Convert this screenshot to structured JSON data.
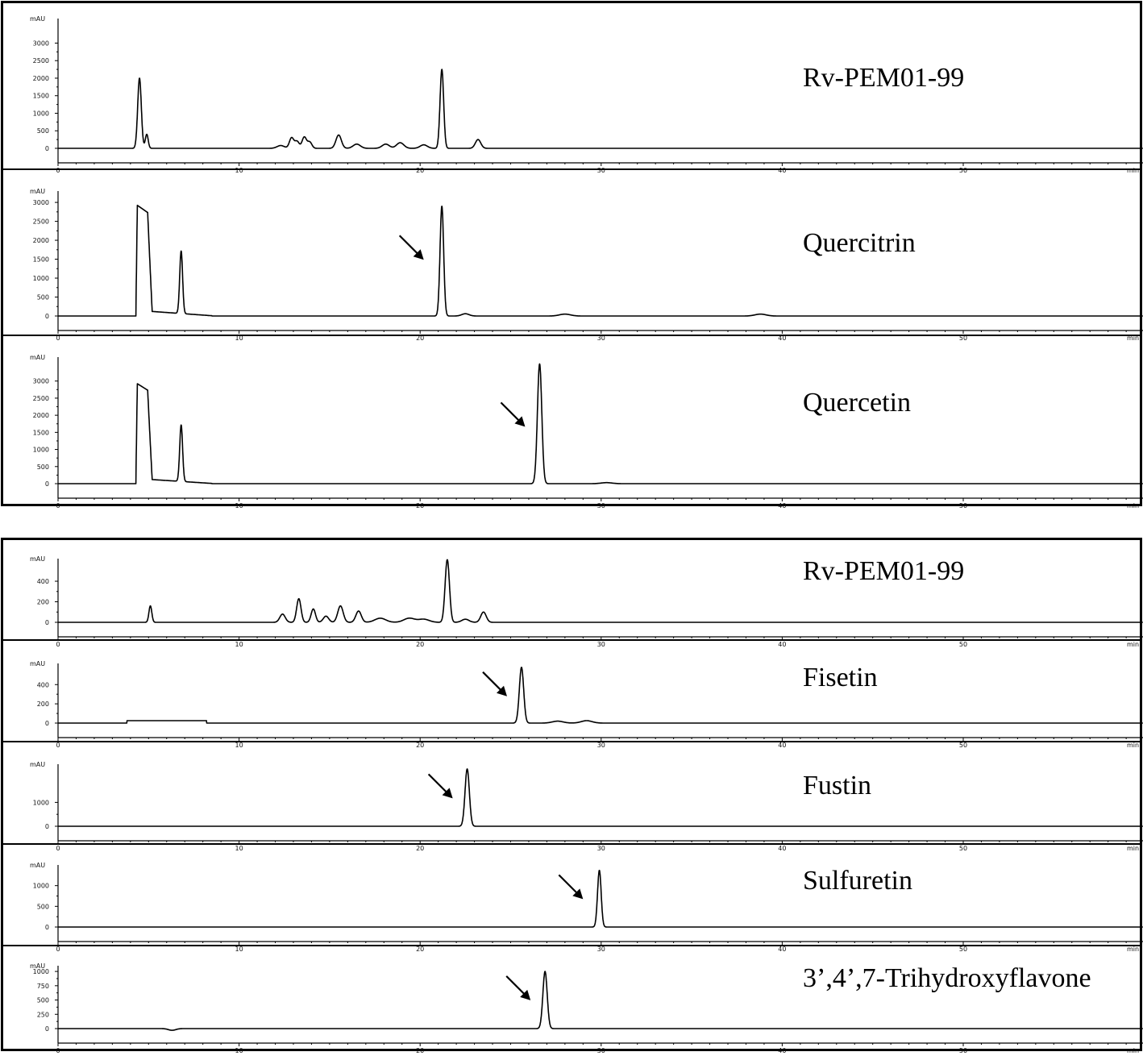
{
  "chart_data": [
    {
      "type": "line",
      "group": 1,
      "title": "Rv-PEM01-99",
      "ylabel": "mAU",
      "xunit": "min",
      "xlim": [
        0,
        60
      ],
      "ylim": [
        0,
        3700
      ],
      "yticks": [
        0,
        500,
        1000,
        1500,
        2000,
        2500,
        3000
      ],
      "xticks": [
        0,
        10,
        20,
        30,
        40,
        50
      ],
      "arrow_at": null,
      "peaks": [
        [
          4.5,
          2000,
          0.1
        ],
        [
          4.9,
          400,
          0.08
        ],
        [
          12.3,
          80,
          0.2
        ],
        [
          12.9,
          300,
          0.12
        ],
        [
          13.2,
          200,
          0.12
        ],
        [
          13.6,
          320,
          0.12
        ],
        [
          13.9,
          180,
          0.12
        ],
        [
          15.5,
          380,
          0.15
        ],
        [
          16.5,
          120,
          0.2
        ],
        [
          18.1,
          120,
          0.2
        ],
        [
          18.9,
          160,
          0.2
        ],
        [
          20.2,
          100,
          0.2
        ],
        [
          21.2,
          2250,
          0.1
        ],
        [
          23.2,
          250,
          0.15
        ]
      ]
    },
    {
      "type": "line",
      "group": 1,
      "title": "Quercitrin",
      "ylabel": "mAU",
      "xunit": "min",
      "xlim": [
        0,
        60
      ],
      "ylim": [
        0,
        3300
      ],
      "yticks": [
        0,
        500,
        1000,
        1500,
        2000,
        2500,
        3000
      ],
      "xticks": [
        0,
        10,
        20,
        30,
        40,
        50
      ],
      "arrow_at": 20.2,
      "solvent_front": [
        4.3,
        5.2,
        2950,
        2650,
        120
      ],
      "peaks": [
        [
          6.8,
          1650,
          0.08
        ],
        [
          21.2,
          2900,
          0.1
        ],
        [
          22.5,
          60,
          0.2
        ],
        [
          28.0,
          50,
          0.3
        ],
        [
          38.8,
          50,
          0.3
        ]
      ]
    },
    {
      "type": "line",
      "group": 1,
      "title": "Quercetin",
      "ylabel": "mAU",
      "xunit": "min",
      "xlim": [
        0,
        60
      ],
      "ylim": [
        0,
        3700
      ],
      "yticks": [
        0,
        500,
        1000,
        1500,
        2000,
        2500,
        3000
      ],
      "xticks": [
        0,
        10,
        20,
        30,
        40,
        50
      ],
      "arrow_at": 25.8,
      "solvent_front": [
        4.3,
        5.2,
        2950,
        2650,
        120
      ],
      "peaks": [
        [
          6.8,
          1650,
          0.08
        ],
        [
          26.6,
          3500,
          0.12
        ],
        [
          30.3,
          30,
          0.3
        ]
      ]
    },
    {
      "type": "line",
      "group": 2,
      "title": "Rv-PEM01-99",
      "ylabel": "mAU",
      "xunit": "min",
      "xlim": [
        0,
        60
      ],
      "ylim": [
        0,
        620
      ],
      "yticks": [
        0,
        200,
        400
      ],
      "xticks": [
        0,
        10,
        20,
        30,
        40,
        50
      ],
      "arrow_at": null,
      "peaks": [
        [
          5.1,
          160,
          0.08
        ],
        [
          12.4,
          80,
          0.15
        ],
        [
          13.3,
          230,
          0.12
        ],
        [
          14.1,
          130,
          0.12
        ],
        [
          14.8,
          60,
          0.15
        ],
        [
          15.6,
          160,
          0.15
        ],
        [
          16.6,
          110,
          0.15
        ],
        [
          17.8,
          40,
          0.3
        ],
        [
          19.4,
          40,
          0.3
        ],
        [
          20.2,
          30,
          0.3
        ],
        [
          21.5,
          610,
          0.12
        ],
        [
          22.5,
          30,
          0.2
        ],
        [
          23.5,
          100,
          0.15
        ]
      ]
    },
    {
      "type": "line",
      "group": 2,
      "title": "Fisetin",
      "ylabel": "mAU",
      "xunit": "min",
      "xlim": [
        0,
        60
      ],
      "ylim": [
        0,
        620
      ],
      "yticks": [
        0,
        200,
        400
      ],
      "xticks": [
        0,
        10,
        20,
        30,
        40,
        50
      ],
      "arrow_at": 24.8,
      "baseline_bumps": [
        [
          3.8,
          8.2,
          25
        ]
      ],
      "peaks": [
        [
          25.6,
          580,
          0.12
        ],
        [
          27.6,
          20,
          0.3
        ],
        [
          29.2,
          25,
          0.3
        ]
      ]
    },
    {
      "type": "line",
      "group": 2,
      "title": "Fustin",
      "ylabel": "mAU",
      "xunit": "min",
      "xlim": [
        0,
        60
      ],
      "ylim": [
        0,
        2600
      ],
      "yticks": [
        0,
        1000
      ],
      "xticks": [
        0,
        10,
        20,
        30,
        40,
        50
      ],
      "arrow_at": 21.8,
      "peaks": [
        [
          22.6,
          2400,
          0.12
        ]
      ]
    },
    {
      "type": "line",
      "group": 2,
      "title": "Sulfuretin",
      "ylabel": "mAU",
      "xunit": "min",
      "xlim": [
        0,
        60
      ],
      "ylim": [
        0,
        1500
      ],
      "yticks": [
        0,
        500,
        1000
      ],
      "xticks": [
        0,
        10,
        20,
        30,
        40,
        50
      ],
      "arrow_at": 29.0,
      "peaks": [
        [
          29.9,
          1370,
          0.1
        ]
      ]
    },
    {
      "type": "line",
      "group": 2,
      "title": "3’,4’,7-Trihydroxyflavone",
      "ylabel": "mAU",
      "xunit": "min",
      "xlim": [
        0,
        60
      ],
      "ylim": [
        0,
        1100
      ],
      "yticks": [
        0,
        250,
        500,
        750,
        1000
      ],
      "xticks": [
        0,
        10,
        20,
        30,
        40,
        50
      ],
      "arrow_at": 26.1,
      "peaks": [
        [
          26.9,
          1000,
          0.12
        ],
        [
          6.3,
          -30,
          0.2
        ]
      ]
    }
  ]
}
